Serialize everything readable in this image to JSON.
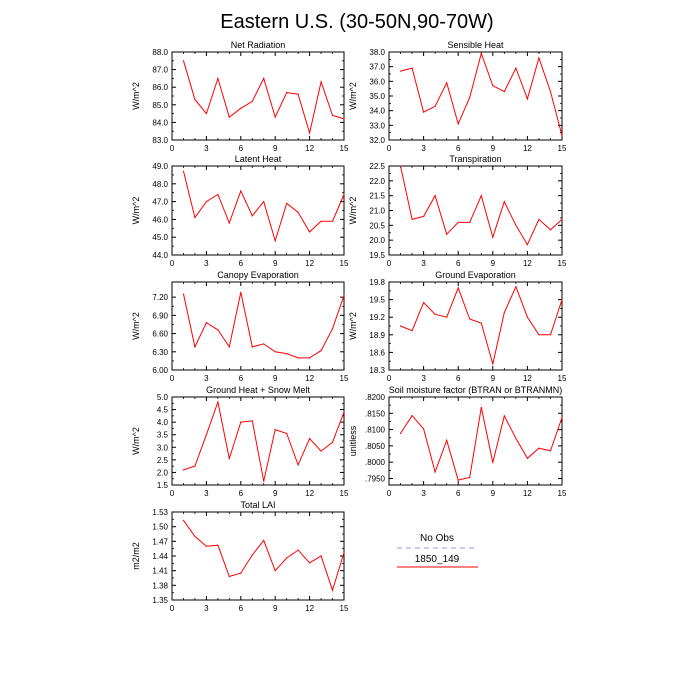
{
  "figure": {
    "title": "Eastern U.S. (30-50N,90-70W)"
  },
  "legend": {
    "items": [
      {
        "label": "No Obs",
        "color": "#9a9ae6",
        "dashed": true
      },
      {
        "label": "1850_149",
        "color": "#ff0000",
        "dashed": false
      }
    ]
  },
  "chart_data": [
    {
      "type": "line",
      "title": "Net Radiation",
      "ylabel": "W/m^2",
      "x": [
        1,
        2,
        3,
        4,
        5,
        6,
        7,
        8,
        9,
        10,
        11,
        12,
        13,
        14,
        15
      ],
      "series": [
        {
          "name": "1850_149",
          "color": "#ff0000",
          "values": [
            87.5,
            85.3,
            84.5,
            86.5,
            84.3,
            84.8,
            85.2,
            86.5,
            84.3,
            85.7,
            85.6,
            83.4,
            86.3,
            84.4,
            84.2
          ]
        }
      ],
      "xlim": [
        0,
        15
      ],
      "ylim": [
        83,
        88
      ],
      "xticks": [
        0,
        3,
        6,
        9,
        12,
        15
      ],
      "xticklabels": [
        "0",
        "3",
        "6",
        "9",
        "12",
        "15"
      ],
      "yticks": [
        83,
        84,
        85,
        86,
        87,
        88
      ],
      "yticklabels": [
        "83.0",
        "84.0",
        "85.0",
        "86.0",
        "87.0",
        "88.0"
      ]
    },
    {
      "type": "line",
      "title": "Sensible Heat",
      "ylabel": "W/m^2",
      "x": [
        1,
        2,
        3,
        4,
        5,
        6,
        7,
        8,
        9,
        10,
        11,
        12,
        13,
        14,
        15
      ],
      "series": [
        {
          "name": "1850_149",
          "color": "#ff0000",
          "values": [
            36.7,
            36.9,
            33.9,
            34.3,
            35.9,
            33.1,
            34.9,
            37.9,
            35.7,
            35.3,
            36.9,
            34.8,
            37.6,
            35.3,
            32.3
          ]
        }
      ],
      "xlim": [
        0,
        15
      ],
      "ylim": [
        32,
        38
      ],
      "xticks": [
        0,
        3,
        6,
        9,
        12,
        15
      ],
      "xticklabels": [
        "0",
        "3",
        "6",
        "9",
        "12",
        "15"
      ],
      "yticks": [
        32,
        33,
        34,
        35,
        36,
        37,
        38
      ],
      "yticklabels": [
        "32.0",
        "33.0",
        "34.0",
        "35.0",
        "36.0",
        "37.0",
        "38.0"
      ]
    },
    {
      "type": "line",
      "title": "Latent Heat",
      "ylabel": "W/m^2",
      "x": [
        1,
        2,
        3,
        4,
        5,
        6,
        7,
        8,
        9,
        10,
        11,
        12,
        13,
        14,
        15
      ],
      "series": [
        {
          "name": "1850_149",
          "color": "#ff0000",
          "values": [
            48.7,
            46.1,
            47.0,
            47.4,
            45.8,
            47.6,
            46.2,
            47.0,
            44.8,
            46.9,
            46.4,
            45.3,
            45.9,
            45.9,
            47.4
          ]
        }
      ],
      "xlim": [
        0,
        15
      ],
      "ylim": [
        44,
        49
      ],
      "xticks": [
        0,
        3,
        6,
        9,
        12,
        15
      ],
      "xticklabels": [
        "0",
        "3",
        "6",
        "9",
        "12",
        "15"
      ],
      "yticks": [
        44,
        45,
        46,
        47,
        48,
        49
      ],
      "yticklabels": [
        "44.0",
        "45.0",
        "46.0",
        "47.0",
        "48.0",
        "49.0"
      ]
    },
    {
      "type": "line",
      "title": "Transpiration",
      "ylabel": "W/m^2",
      "x": [
        1,
        2,
        3,
        4,
        5,
        6,
        7,
        8,
        9,
        10,
        11,
        12,
        13,
        14,
        15
      ],
      "series": [
        {
          "name": "1850_149",
          "color": "#ff0000",
          "values": [
            22.5,
            20.7,
            20.8,
            21.5,
            20.2,
            20.6,
            20.6,
            21.5,
            20.1,
            21.3,
            20.5,
            19.85,
            20.7,
            20.35,
            20.7
          ]
        }
      ],
      "xlim": [
        0,
        15
      ],
      "ylim": [
        19.5,
        22.5
      ],
      "xticks": [
        0,
        3,
        6,
        9,
        12,
        15
      ],
      "xticklabels": [
        "0",
        "3",
        "6",
        "9",
        "12",
        "15"
      ],
      "yticks": [
        19.5,
        20,
        20.5,
        21,
        21.5,
        22,
        22.5
      ],
      "yticklabels": [
        "19.5",
        "20.0",
        "20.5",
        "21.0",
        "21.5",
        "22.0",
        "22.5"
      ]
    },
    {
      "type": "line",
      "title": "Canopy Evaporation",
      "ylabel": "W/m^2",
      "x": [
        1,
        2,
        3,
        4,
        5,
        6,
        7,
        8,
        9,
        10,
        11,
        12,
        13,
        14,
        15
      ],
      "series": [
        {
          "name": "1850_149",
          "color": "#ff0000",
          "values": [
            7.25,
            6.38,
            6.78,
            6.66,
            6.38,
            7.28,
            6.38,
            6.43,
            6.3,
            6.27,
            6.2,
            6.2,
            6.32,
            6.68,
            7.23
          ]
        }
      ],
      "xlim": [
        0,
        15
      ],
      "ylim": [
        6.0,
        7.45
      ],
      "xticks": [
        0,
        3,
        6,
        9,
        12,
        15
      ],
      "xticklabels": [
        "0",
        "3",
        "6",
        "9",
        "12",
        "15"
      ],
      "yticks": [
        6.0,
        6.3,
        6.6,
        6.9,
        7.2
      ],
      "yticklabels": [
        "6.00",
        "6.30",
        "6.60",
        "6.90",
        "7.20"
      ]
    },
    {
      "type": "line",
      "title": "Ground Evaporation",
      "ylabel": "W/m^2",
      "x": [
        1,
        2,
        3,
        4,
        5,
        6,
        7,
        8,
        9,
        10,
        11,
        12,
        13,
        14,
        15
      ],
      "series": [
        {
          "name": "1850_149",
          "color": "#ff0000",
          "values": [
            19.05,
            18.97,
            19.45,
            19.25,
            19.2,
            19.7,
            19.17,
            19.1,
            18.4,
            19.28,
            19.72,
            19.2,
            18.9,
            18.9,
            19.5
          ]
        }
      ],
      "xlim": [
        0,
        15
      ],
      "ylim": [
        18.3,
        19.8
      ],
      "xticks": [
        0,
        3,
        6,
        9,
        12,
        15
      ],
      "xticklabels": [
        "0",
        "3",
        "6",
        "9",
        "12",
        "15"
      ],
      "yticks": [
        18.3,
        18.6,
        18.9,
        19.2,
        19.5,
        19.8
      ],
      "yticklabels": [
        "18.3",
        "18.6",
        "18.9",
        "19.2",
        "19.5",
        "19.8"
      ]
    },
    {
      "type": "line",
      "title": "Ground Heat + Snow Melt",
      "ylabel": "W/m^2",
      "x": [
        1,
        2,
        3,
        4,
        5,
        6,
        7,
        8,
        9,
        10,
        11,
        12,
        13,
        14,
        15
      ],
      "series": [
        {
          "name": "1850_149",
          "color": "#ff0000",
          "values": [
            2.1,
            2.25,
            3.5,
            4.8,
            2.55,
            4.0,
            4.05,
            1.65,
            3.7,
            3.55,
            2.3,
            3.35,
            2.85,
            3.2,
            4.4
          ]
        }
      ],
      "xlim": [
        0,
        15
      ],
      "ylim": [
        1.5,
        5.0
      ],
      "xticks": [
        0,
        3,
        6,
        9,
        12,
        15
      ],
      "xticklabels": [
        "0",
        "3",
        "6",
        "9",
        "12",
        "15"
      ],
      "yticks": [
        1.5,
        2.0,
        2.5,
        3.0,
        3.5,
        4.0,
        4.5,
        5.0
      ],
      "yticklabels": [
        "1.5",
        "2.0",
        "2.5",
        "3.0",
        "3.5",
        "4.0",
        "4.5",
        "5.0"
      ]
    },
    {
      "type": "line",
      "title": "Soil moisture factor (BTRAN or BTRANMN)",
      "ylabel": "unitless",
      "x": [
        1,
        2,
        3,
        4,
        5,
        6,
        7,
        8,
        9,
        10,
        11,
        12,
        13,
        14,
        15
      ],
      "series": [
        {
          "name": "1850_149",
          "color": "#ff0000",
          "values": [
            0.8088,
            0.8143,
            0.8102,
            0.797,
            0.8067,
            0.7945,
            0.7953,
            0.8168,
            0.7999,
            0.8142,
            0.8073,
            0.8012,
            0.8043,
            0.8035,
            0.8137
          ]
        }
      ],
      "xlim": [
        0,
        15
      ],
      "ylim": [
        0.793,
        0.82
      ],
      "xticks": [
        0,
        3,
        6,
        9,
        12,
        15
      ],
      "xticklabels": [
        "0",
        "3",
        "6",
        "9",
        "12",
        "15"
      ],
      "yticks": [
        0.795,
        0.8,
        0.805,
        0.81,
        0.815,
        0.82
      ],
      "yticklabels": [
        ".7950",
        ".8000",
        ".8050",
        ".8100",
        ".8150",
        ".8200"
      ]
    },
    {
      "type": "line",
      "title": "Total LAI",
      "ylabel": "m2/m2",
      "x": [
        1,
        2,
        3,
        4,
        5,
        6,
        7,
        8,
        9,
        10,
        11,
        12,
        13,
        14,
        15
      ],
      "series": [
        {
          "name": "1850_149",
          "color": "#ff0000",
          "values": [
            1.513,
            1.48,
            1.46,
            1.462,
            1.398,
            1.405,
            1.442,
            1.472,
            1.41,
            1.436,
            1.452,
            1.426,
            1.44,
            1.37,
            1.447
          ]
        }
      ],
      "xlim": [
        0,
        15
      ],
      "ylim": [
        1.35,
        1.53
      ],
      "xticks": [
        0,
        3,
        6,
        9,
        12,
        15
      ],
      "xticklabels": [
        "0",
        "3",
        "6",
        "9",
        "12",
        "15"
      ],
      "yticks": [
        1.35,
        1.38,
        1.41,
        1.44,
        1.47,
        1.5,
        1.53
      ],
      "yticklabels": [
        "1.35",
        "1.38",
        "1.41",
        "1.44",
        "1.47",
        "1.50",
        "1.53"
      ]
    }
  ]
}
